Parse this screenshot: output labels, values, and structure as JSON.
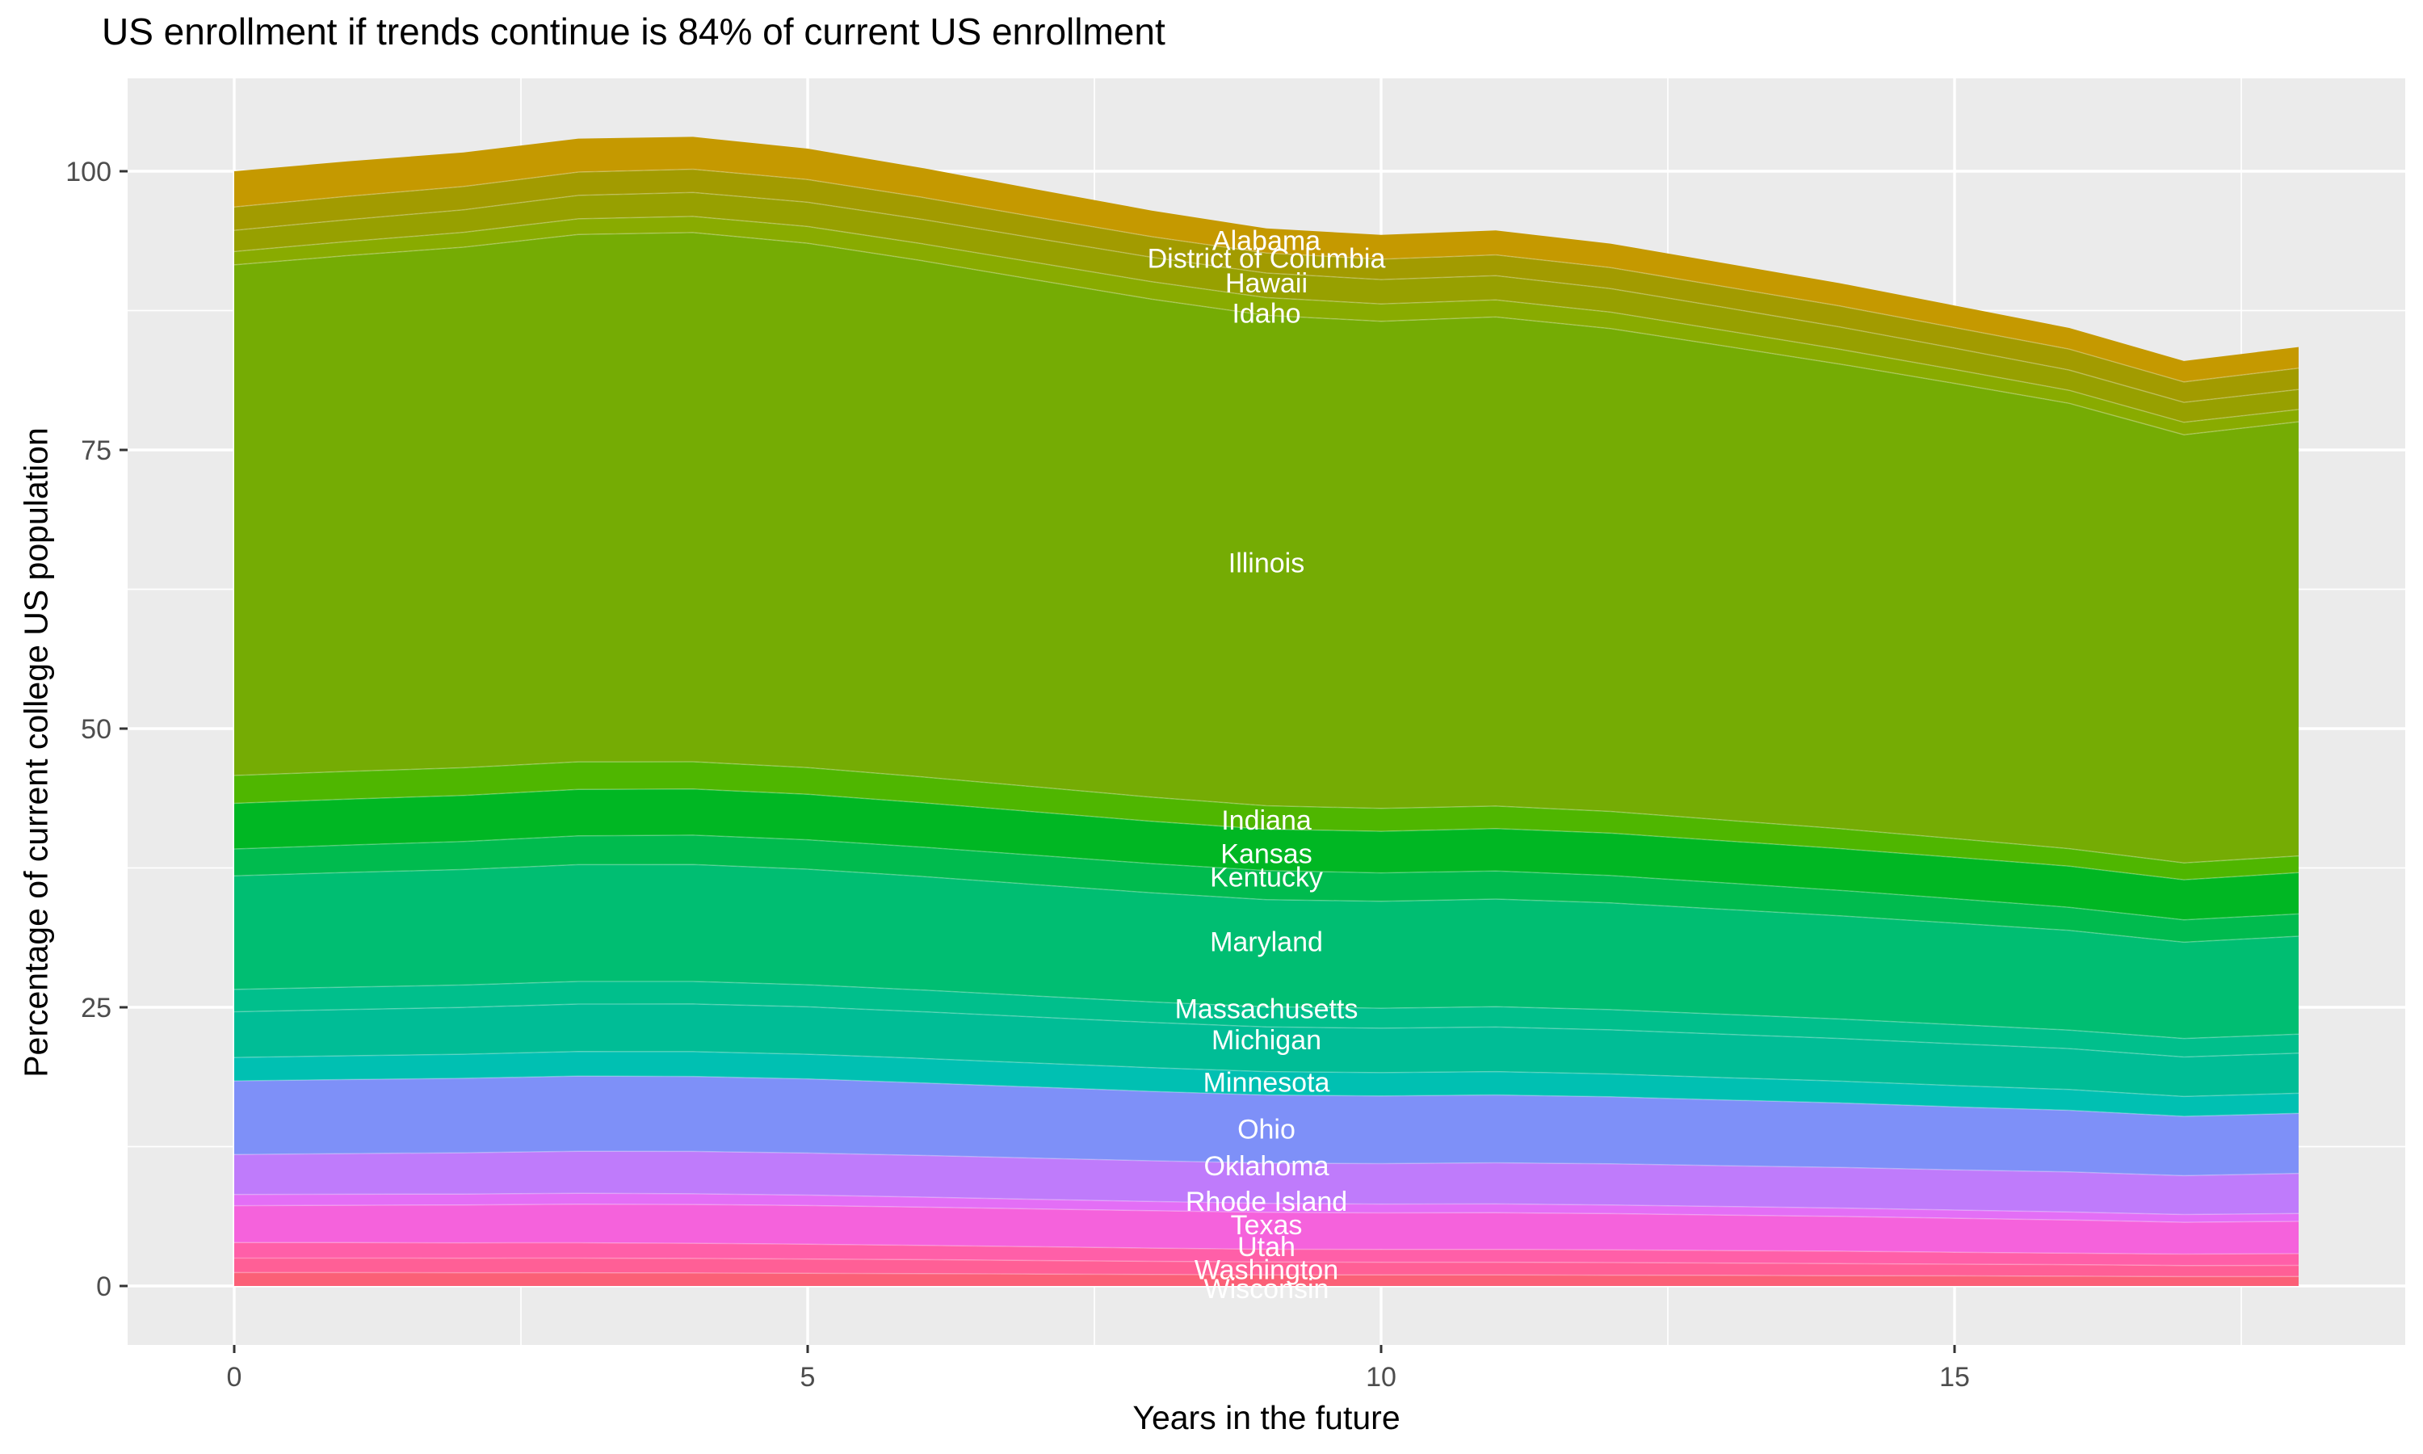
{
  "title": "US enrollment if trends continue is 84% of current US enrollment",
  "chart_data": {
    "type": "area",
    "stacked": true,
    "title": "US enrollment if trends continue is 84% of current US enrollment",
    "xlabel": "Years in the future",
    "ylabel": "Percentage of current college US population",
    "x": [
      0,
      1,
      2,
      3,
      4,
      5,
      6,
      7,
      8,
      9,
      10,
      11,
      12,
      13,
      14,
      15,
      16,
      17,
      18
    ],
    "x_ticks": [
      0,
      5,
      10,
      15
    ],
    "y_ticks": [
      0,
      25,
      50,
      75,
      100
    ],
    "x_minor_ticks": [
      2.5,
      7.5,
      12.5,
      17.5
    ],
    "y_minor_ticks": [
      12.5,
      37.5,
      62.5,
      87.5
    ],
    "x_range": [
      -0.93,
      18.93
    ],
    "y_range": [
      -5.3,
      108.3
    ],
    "grid": "on",
    "legend_position": "none",
    "label_x": 9,
    "total_at_year0": 100.0,
    "total_at_year18": 84.2,
    "series": [
      {
        "name": "Alabama",
        "color": "#C59900",
        "label_y_pct": 93.8,
        "values": [
          3.2,
          3.14,
          3.06,
          3.0,
          2.91,
          2.78,
          2.63,
          2.48,
          2.34,
          2.2,
          2.18,
          2.19,
          2.15,
          2.1,
          2.05,
          1.98,
          1.9,
          1.88,
          1.9
        ]
      },
      {
        "name": "District of Columbia",
        "color": "#A29B00",
        "label_y_pct": 92.2,
        "values": [
          2.1,
          2.1,
          2.09,
          2.1,
          2.08,
          2.03,
          1.98,
          1.91,
          1.85,
          1.8,
          1.83,
          1.87,
          1.88,
          1.87,
          1.88,
          1.85,
          1.87,
          1.83,
          1.9
        ]
      },
      {
        "name": "Hawaii",
        "color": "#97A000",
        "label_y_pct": 90.0,
        "values": [
          1.9,
          1.96,
          2.02,
          2.1,
          2.15,
          2.18,
          2.19,
          2.18,
          2.19,
          2.2,
          2.18,
          2.17,
          2.12,
          2.06,
          2.0,
          1.91,
          1.82,
          1.79,
          1.8
        ]
      },
      {
        "name": "Idaho",
        "color": "#89AB00",
        "label_y_pct": 87.3,
        "values": [
          1.2,
          1.26,
          1.33,
          1.4,
          1.45,
          1.5,
          1.52,
          1.55,
          1.57,
          1.6,
          1.56,
          1.53,
          1.47,
          1.4,
          1.33,
          1.25,
          1.17,
          1.12,
          1.1
        ]
      },
      {
        "name": "Illinois",
        "color": "#75AC04",
        "label_y_pct": 64.9,
        "values": [
          45.8,
          46.27,
          46.7,
          47.31,
          47.47,
          47.03,
          46.3,
          45.48,
          44.67,
          43.99,
          43.7,
          43.88,
          43.32,
          42.52,
          41.68,
          40.83,
          39.95,
          38.4,
          38.95
        ]
      },
      {
        "name": "Indiana",
        "color": "#4FB600",
        "label_y_pct": 41.8,
        "values": [
          2.5,
          2.49,
          2.48,
          2.48,
          2.45,
          2.4,
          2.32,
          2.24,
          2.17,
          2.1,
          2.05,
          2.02,
          1.95,
          1.86,
          1.78,
          1.68,
          1.57,
          1.52,
          1.5
        ]
      },
      {
        "name": "Kansas",
        "color": "#00B723",
        "label_y_pct": 38.8,
        "values": [
          4.1,
          4.12,
          4.13,
          4.16,
          4.14,
          4.08,
          3.98,
          3.89,
          3.79,
          3.71,
          3.73,
          3.8,
          3.8,
          3.77,
          3.75,
          3.72,
          3.69,
          3.59,
          3.7
        ]
      },
      {
        "name": "Kentucky",
        "color": "#00BB4E",
        "label_y_pct": 36.7,
        "values": [
          2.4,
          2.46,
          2.52,
          2.58,
          2.63,
          2.64,
          2.63,
          2.63,
          2.62,
          2.61,
          2.55,
          2.52,
          2.46,
          2.37,
          2.28,
          2.18,
          2.07,
          2.01,
          2.0
        ]
      },
      {
        "name": "Maryland",
        "color": "#00BE72",
        "label_y_pct": 30.9,
        "values": [
          10.2,
          10.29,
          10.36,
          10.48,
          10.49,
          10.37,
          10.19,
          9.99,
          9.79,
          9.62,
          9.59,
          9.66,
          9.57,
          9.42,
          9.26,
          9.11,
          8.94,
          8.64,
          8.79
        ]
      },
      {
        "name": "Massachusetts",
        "color": "#00BF8C",
        "label_y_pct": 24.9,
        "values": [
          2.0,
          2.01,
          2.01,
          2.03,
          2.02,
          1.98,
          1.95,
          1.89,
          1.84,
          1.8,
          1.8,
          1.82,
          1.81,
          1.79,
          1.75,
          1.72,
          1.66,
          1.66,
          1.7
        ]
      },
      {
        "name": "Michigan",
        "color": "#00BD96",
        "label_y_pct": 22.1,
        "values": [
          4.1,
          4.15,
          4.2,
          4.26,
          4.28,
          4.25,
          4.19,
          4.13,
          4.06,
          4.01,
          3.98,
          4.0,
          3.96,
          3.89,
          3.82,
          3.75,
          3.68,
          3.54,
          3.6
        ]
      },
      {
        "name": "Minnesota",
        "color": "#00C0B2",
        "label_y_pct": 18.3,
        "values": [
          2.1,
          2.13,
          2.16,
          2.2,
          2.22,
          2.21,
          2.19,
          2.15,
          2.12,
          2.1,
          2.09,
          2.09,
          2.05,
          2.0,
          1.96,
          1.91,
          1.86,
          1.78,
          1.8
        ]
      },
      {
        "name": "Ohio",
        "color": "#7E90F8",
        "label_y_pct": 14.1,
        "values": [
          6.6,
          6.64,
          6.68,
          6.74,
          6.73,
          6.65,
          6.51,
          6.37,
          6.23,
          6.11,
          6.07,
          6.09,
          6.01,
          5.9,
          5.78,
          5.65,
          5.53,
          5.32,
          5.39
        ]
      },
      {
        "name": "Oklahoma",
        "color": "#BF7BFB",
        "label_y_pct": 10.8,
        "values": [
          3.6,
          3.65,
          3.7,
          3.77,
          3.8,
          3.78,
          3.74,
          3.7,
          3.65,
          3.61,
          3.63,
          3.69,
          3.69,
          3.66,
          3.65,
          3.61,
          3.59,
          3.49,
          3.6
        ]
      },
      {
        "name": "Rhode Island",
        "color": "#E36EF6",
        "label_y_pct": 7.6,
        "values": [
          1.0,
          0.99,
          0.98,
          0.98,
          0.96,
          0.93,
          0.9,
          0.86,
          0.83,
          0.8,
          0.79,
          0.79,
          0.78,
          0.77,
          0.75,
          0.73,
          0.72,
          0.69,
          0.7
        ]
      },
      {
        "name": "Texas",
        "color": "#F562DC",
        "label_y_pct": 5.5,
        "values": [
          3.3,
          3.35,
          3.4,
          3.46,
          3.48,
          3.47,
          3.43,
          3.39,
          3.35,
          3.31,
          3.28,
          3.29,
          3.24,
          3.18,
          3.12,
          3.05,
          2.98,
          2.86,
          2.9
        ]
      },
      {
        "name": "Utah",
        "color": "#FF5FA8",
        "label_y_pct": 3.55,
        "values": [
          1.4,
          1.39,
          1.38,
          1.38,
          1.36,
          1.33,
          1.28,
          1.24,
          1.19,
          1.15,
          1.15,
          1.15,
          1.15,
          1.12,
          1.11,
          1.07,
          1.03,
          1.03,
          1.05
        ]
      },
      {
        "name": "Washington",
        "color": "#FF5F96",
        "label_y_pct": 1.5,
        "values": [
          1.3,
          1.3,
          1.3,
          1.31,
          1.3,
          1.28,
          1.25,
          1.21,
          1.18,
          1.15,
          1.14,
          1.14,
          1.13,
          1.1,
          1.08,
          1.05,
          1.03,
          0.99,
          1.0
        ]
      },
      {
        "name": "Wisconsin",
        "color": "#FB6077",
        "label_y_pct": -0.2,
        "values": [
          1.2,
          1.2,
          1.19,
          1.19,
          1.17,
          1.14,
          1.11,
          1.07,
          1.03,
          1.0,
          0.99,
          0.99,
          0.97,
          0.96,
          0.93,
          0.91,
          0.88,
          0.84,
          0.85
        ]
      }
    ]
  },
  "panel": {
    "background": "#EBEBEB",
    "grid_color": "#FFFFFF",
    "tick_mark_color": "#333333",
    "tick_label_color": "#4D4D4D",
    "area_label_color": "#FFFFFF"
  }
}
